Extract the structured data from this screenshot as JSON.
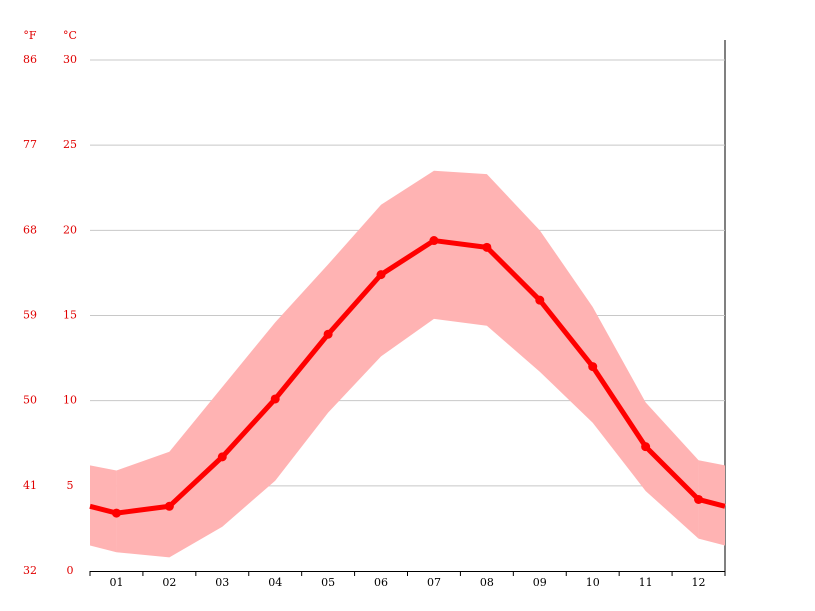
{
  "chart_data": {
    "type": "line",
    "categories": [
      "01",
      "02",
      "03",
      "04",
      "05",
      "06",
      "07",
      "08",
      "09",
      "10",
      "11",
      "12"
    ],
    "series": [
      {
        "color": "#ff0000",
        "values": [
          3.4,
          3.8,
          6.7,
          10.1,
          13.9,
          17.4,
          19.4,
          19.0,
          15.9,
          12.0,
          7.3,
          4.2
        ]
      }
    ],
    "band": {
      "color": "#ffb3b3",
      "upper": [
        5.9,
        7.0,
        10.8,
        14.6,
        18.0,
        21.5,
        23.5,
        23.3,
        20.0,
        15.5,
        9.9,
        6.5
      ],
      "lower": [
        1.1,
        0.8,
        2.6,
        5.3,
        9.3,
        12.6,
        14.8,
        14.4,
        11.7,
        8.7,
        4.7,
        1.9
      ]
    },
    "ylabel": "°C",
    "ylim": [
      0,
      30
    ],
    "yticks": [
      0,
      5,
      10,
      15,
      20,
      25,
      30
    ],
    "y2label": "°F",
    "y2lim": [
      32,
      86
    ],
    "y2ticks": [
      32,
      41,
      50,
      59,
      68,
      77,
      86
    ],
    "grid": true
  }
}
